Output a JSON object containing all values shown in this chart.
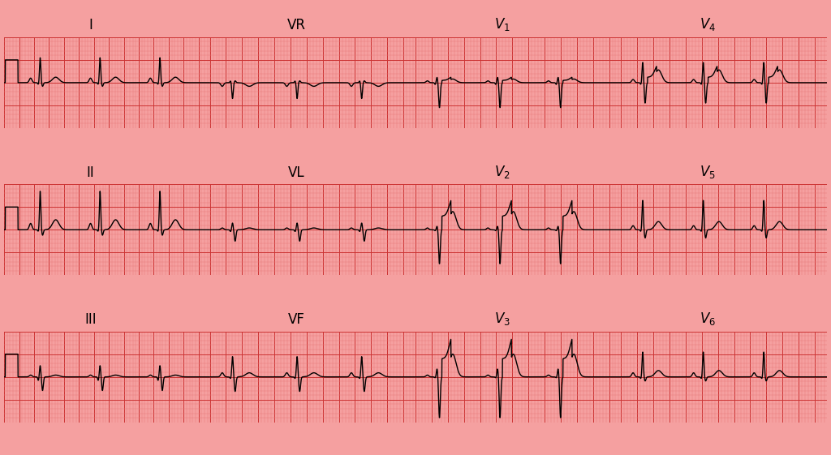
{
  "bg_color": "#f5a0a0",
  "grid_minor_color": "#e87878",
  "grid_major_color": "#cc3333",
  "line_color": "#000000",
  "label_color": "#000000",
  "fig_width": 10.24,
  "fig_height": 5.61,
  "label_fontsize": 12,
  "label_map": {
    "I": "I",
    "II": "II",
    "III": "III",
    "VR": "VR",
    "VL": "VL",
    "VF": "VF",
    "V1": "V1",
    "V2": "V2",
    "V3": "V3",
    "V4": "V4",
    "V5": "V5",
    "V6": "V6"
  },
  "lead_layout": [
    [
      "I",
      "VR",
      "V1",
      "V4"
    ],
    [
      "II",
      "VL",
      "V2",
      "V5"
    ],
    [
      "III",
      "VF",
      "V3",
      "V6"
    ]
  ],
  "lead_params": {
    "I": {
      "p": 0.1,
      "q": -0.04,
      "r": 0.55,
      "s": -0.08,
      "t": 0.12,
      "st": 0.0,
      "rr": 0.8
    },
    "II": {
      "p": 0.14,
      "q": -0.04,
      "r": 0.85,
      "s": -0.12,
      "t": 0.22,
      "st": 0.0,
      "rr": 0.8
    },
    "III": {
      "p": 0.04,
      "q": -0.08,
      "r": 0.25,
      "s": -0.3,
      "t": 0.04,
      "st": 0.0,
      "rr": 0.8
    },
    "VR": {
      "p": -0.08,
      "q": 0.04,
      "r": -0.35,
      "s": 0.04,
      "t": -0.08,
      "st": 0.0,
      "rr": 0.8
    },
    "VL": {
      "p": 0.04,
      "q": -0.04,
      "r": 0.15,
      "s": -0.25,
      "t": 0.04,
      "st": 0.0,
      "rr": 0.8
    },
    "VF": {
      "p": 0.09,
      "q": -0.04,
      "r": 0.45,
      "s": -0.32,
      "t": 0.09,
      "st": 0.0,
      "rr": 0.8
    },
    "V1": {
      "p": 0.04,
      "q": -0.04,
      "r": 0.12,
      "s": -0.55,
      "t": 0.08,
      "st": 0.05,
      "rr": 0.75
    },
    "V2": {
      "p": 0.04,
      "q": -0.02,
      "r": 0.08,
      "s": -0.75,
      "t": 0.4,
      "st": 0.3,
      "rr": 0.75
    },
    "V3": {
      "p": 0.04,
      "q": -0.02,
      "r": 0.18,
      "s": -0.9,
      "t": 0.5,
      "st": 0.4,
      "rr": 0.75
    },
    "V4": {
      "p": 0.07,
      "q": -0.04,
      "r": 0.45,
      "s": -0.45,
      "t": 0.28,
      "st": 0.12,
      "rr": 0.75
    },
    "V5": {
      "p": 0.09,
      "q": -0.04,
      "r": 0.65,
      "s": -0.18,
      "t": 0.18,
      "st": 0.0,
      "rr": 0.75
    },
    "V6": {
      "p": 0.09,
      "q": -0.04,
      "r": 0.55,
      "s": -0.09,
      "t": 0.14,
      "st": 0.0,
      "rr": 0.75
    }
  }
}
